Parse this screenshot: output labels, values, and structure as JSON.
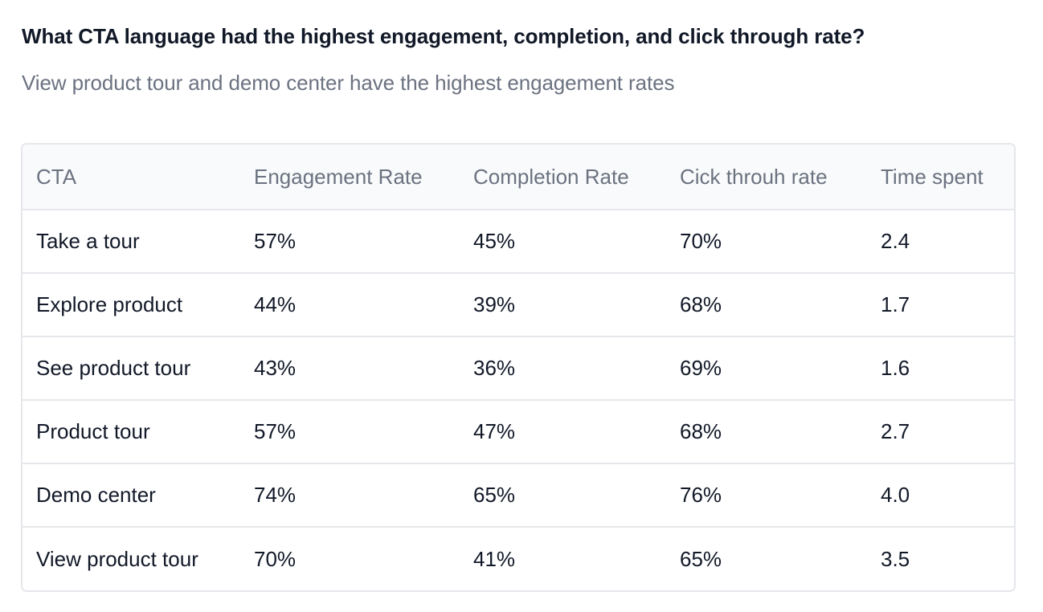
{
  "header": {
    "title": "What CTA language had the highest engagement, completion, and click through rate?",
    "subtitle": "View product tour and demo center have the highest engagement rates"
  },
  "table": {
    "columns": [
      "CTA",
      "Engagement Rate",
      "Completion Rate",
      "Cick throuh rate",
      "Time spent"
    ],
    "rows": [
      [
        "Take a tour",
        "57%",
        "45%",
        "70%",
        "2.4"
      ],
      [
        "Explore product",
        "44%",
        "39%",
        "68%",
        "1.7"
      ],
      [
        "See product tour",
        "43%",
        "36%",
        "69%",
        "1.6"
      ],
      [
        "Product tour",
        "57%",
        "47%",
        "68%",
        "2.7"
      ],
      [
        "Demo center",
        "74%",
        "65%",
        "76%",
        "4.0"
      ],
      [
        "View product tour",
        "70%",
        "41%",
        "65%",
        "3.5"
      ]
    ]
  }
}
